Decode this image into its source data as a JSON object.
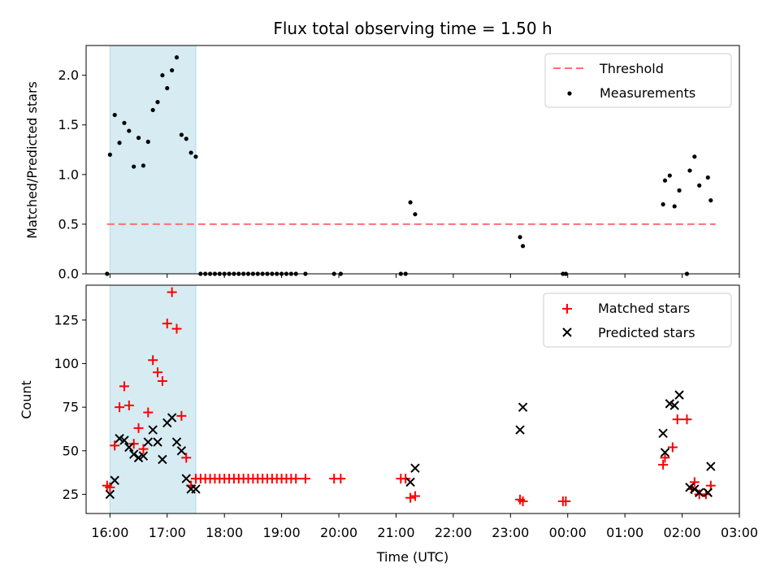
{
  "chart_data": [
    {
      "type": "scatter",
      "title": "Flux total observing time = 1.50 h",
      "xlabel": "",
      "ylabel": "Matched/Predicted stars",
      "xlim": [
        "15:35",
        "03:00"
      ],
      "ylim": [
        0,
        2.3
      ],
      "yticks": [
        "0.0",
        "0.5",
        "1.0",
        "1.5",
        "2.0"
      ],
      "shaded_span": [
        "16:00",
        "17:30"
      ],
      "legend_position": "top-right",
      "legend": [
        "Threshold",
        "Measurements"
      ],
      "threshold": {
        "name": "Threshold",
        "value": 0.5,
        "x": [
          "15:57",
          "02:35"
        ],
        "color": "#ff6f6f"
      },
      "series": [
        {
          "name": "Measurements",
          "marker": "dot",
          "color": "#000000",
          "points": [
            [
              "15:57",
              0.0
            ],
            [
              "16:00",
              1.2
            ],
            [
              "16:05",
              1.6
            ],
            [
              "16:10",
              1.32
            ],
            [
              "16:15",
              1.52
            ],
            [
              "16:20",
              1.44
            ],
            [
              "16:25",
              1.08
            ],
            [
              "16:30",
              1.37
            ],
            [
              "16:35",
              1.09
            ],
            [
              "16:40",
              1.33
            ],
            [
              "16:45",
              1.65
            ],
            [
              "16:50",
              1.73
            ],
            [
              "16:55",
              2.0
            ],
            [
              "17:00",
              1.87
            ],
            [
              "17:05",
              2.05
            ],
            [
              "17:10",
              2.18
            ],
            [
              "17:15",
              1.4
            ],
            [
              "17:20",
              1.36
            ],
            [
              "17:25",
              1.22
            ],
            [
              "17:30",
              1.18
            ],
            [
              "17:35",
              0.0
            ],
            [
              "17:40",
              0.0
            ],
            [
              "17:45",
              0.0
            ],
            [
              "17:50",
              0.0
            ],
            [
              "17:55",
              0.0
            ],
            [
              "18:00",
              0.0
            ],
            [
              "18:05",
              0.0
            ],
            [
              "18:10",
              0.0
            ],
            [
              "18:15",
              0.0
            ],
            [
              "18:20",
              0.0
            ],
            [
              "18:25",
              0.0
            ],
            [
              "18:30",
              0.0
            ],
            [
              "18:35",
              0.0
            ],
            [
              "18:40",
              0.0
            ],
            [
              "18:45",
              0.0
            ],
            [
              "18:50",
              0.0
            ],
            [
              "18:55",
              0.0
            ],
            [
              "19:00",
              0.0
            ],
            [
              "19:05",
              0.0
            ],
            [
              "19:10",
              0.0
            ],
            [
              "19:15",
              0.0
            ],
            [
              "19:25",
              0.0
            ],
            [
              "19:55",
              0.0
            ],
            [
              "20:02",
              0.0
            ],
            [
              "21:05",
              0.0
            ],
            [
              "21:10",
              0.0
            ],
            [
              "21:15",
              0.72
            ],
            [
              "21:20",
              0.6
            ],
            [
              "23:10",
              0.37
            ],
            [
              "23:13",
              0.28
            ],
            [
              "23:55",
              0.0
            ],
            [
              "23:58",
              0.0
            ],
            [
              "01:40",
              0.7
            ],
            [
              "01:42",
              0.94
            ],
            [
              "01:47",
              0.99
            ],
            [
              "01:52",
              0.68
            ],
            [
              "01:57",
              0.84
            ],
            [
              "02:05",
              0.0
            ],
            [
              "02:08",
              1.04
            ],
            [
              "02:13",
              1.18
            ],
            [
              "02:18",
              0.89
            ],
            [
              "02:27",
              0.97
            ],
            [
              "02:30",
              0.74
            ]
          ]
        }
      ]
    },
    {
      "type": "scatter",
      "title": "",
      "xlabel": "Time (UTC)",
      "ylabel": "Count",
      "xlim": [
        "15:35",
        "03:00"
      ],
      "ylim": [
        14,
        145
      ],
      "yticks": [
        "25",
        "50",
        "75",
        "100",
        "125"
      ],
      "xticks": [
        "16:00",
        "17:00",
        "18:00",
        "19:00",
        "20:00",
        "21:00",
        "22:00",
        "23:00",
        "00:00",
        "01:00",
        "02:00",
        "03:00"
      ],
      "shaded_span": [
        "16:00",
        "17:30"
      ],
      "legend_position": "top-right",
      "legend": [
        "Matched stars",
        "Predicted stars"
      ],
      "series": [
        {
          "name": "Matched stars",
          "marker": "plus",
          "color": "#ff0000",
          "points": [
            [
              "15:57",
              30
            ],
            [
              "16:00",
              29
            ],
            [
              "16:05",
              53
            ],
            [
              "16:10",
              75
            ],
            [
              "16:15",
              87
            ],
            [
              "16:20",
              76
            ],
            [
              "16:25",
              54
            ],
            [
              "16:30",
              63
            ],
            [
              "16:35",
              51
            ],
            [
              "16:40",
              72
            ],
            [
              "16:45",
              102
            ],
            [
              "16:50",
              95
            ],
            [
              "16:55",
              90
            ],
            [
              "17:00",
              123
            ],
            [
              "17:05",
              141
            ],
            [
              "17:10",
              120
            ],
            [
              "17:15",
              70
            ],
            [
              "17:20",
              46
            ],
            [
              "17:25",
              30
            ],
            [
              "17:30",
              34
            ],
            [
              "17:35",
              34
            ],
            [
              "17:40",
              34
            ],
            [
              "17:45",
              34
            ],
            [
              "17:50",
              34
            ],
            [
              "17:55",
              34
            ],
            [
              "18:00",
              34
            ],
            [
              "18:05",
              34
            ],
            [
              "18:10",
              34
            ],
            [
              "18:15",
              34
            ],
            [
              "18:20",
              34
            ],
            [
              "18:25",
              34
            ],
            [
              "18:30",
              34
            ],
            [
              "18:35",
              34
            ],
            [
              "18:40",
              34
            ],
            [
              "18:45",
              34
            ],
            [
              "18:50",
              34
            ],
            [
              "18:55",
              34
            ],
            [
              "19:00",
              34
            ],
            [
              "19:05",
              34
            ],
            [
              "19:10",
              34
            ],
            [
              "19:15",
              34
            ],
            [
              "19:25",
              34
            ],
            [
              "19:55",
              34
            ],
            [
              "20:02",
              34
            ],
            [
              "21:05",
              34
            ],
            [
              "21:10",
              34
            ],
            [
              "21:15",
              23
            ],
            [
              "21:20",
              24
            ],
            [
              "23:10",
              22
            ],
            [
              "23:13",
              21
            ],
            [
              "23:55",
              21
            ],
            [
              "23:58",
              21
            ],
            [
              "01:40",
              42
            ],
            [
              "01:42",
              46
            ],
            [
              "01:50",
              52
            ],
            [
              "01:55",
              68
            ],
            [
              "02:05",
              68
            ],
            [
              "02:10",
              28
            ],
            [
              "02:13",
              32
            ],
            [
              "02:18",
              25
            ],
            [
              "02:25",
              25
            ],
            [
              "02:30",
              30
            ]
          ]
        },
        {
          "name": "Predicted stars",
          "marker": "x",
          "color": "#000000",
          "points": [
            [
              "16:00",
              25
            ],
            [
              "16:05",
              33
            ],
            [
              "16:10",
              57
            ],
            [
              "16:15",
              56
            ],
            [
              "16:20",
              52
            ],
            [
              "16:25",
              48
            ],
            [
              "16:30",
              46
            ],
            [
              "16:35",
              47
            ],
            [
              "16:40",
              55
            ],
            [
              "16:45",
              62
            ],
            [
              "16:50",
              55
            ],
            [
              "16:55",
              45
            ],
            [
              "17:00",
              66
            ],
            [
              "17:05",
              69
            ],
            [
              "17:10",
              55
            ],
            [
              "17:15",
              50
            ],
            [
              "17:20",
              34
            ],
            [
              "17:25",
              28
            ],
            [
              "17:30",
              28
            ],
            [
              "21:15",
              32
            ],
            [
              "21:20",
              40
            ],
            [
              "23:10",
              62
            ],
            [
              "23:13",
              75
            ],
            [
              "01:40",
              60
            ],
            [
              "01:42",
              49
            ],
            [
              "01:47",
              77
            ],
            [
              "01:52",
              76
            ],
            [
              "01:57",
              82
            ],
            [
              "02:08",
              29
            ],
            [
              "02:13",
              28
            ],
            [
              "02:18",
              26
            ],
            [
              "02:27",
              26
            ],
            [
              "02:30",
              41
            ]
          ]
        }
      ]
    }
  ]
}
